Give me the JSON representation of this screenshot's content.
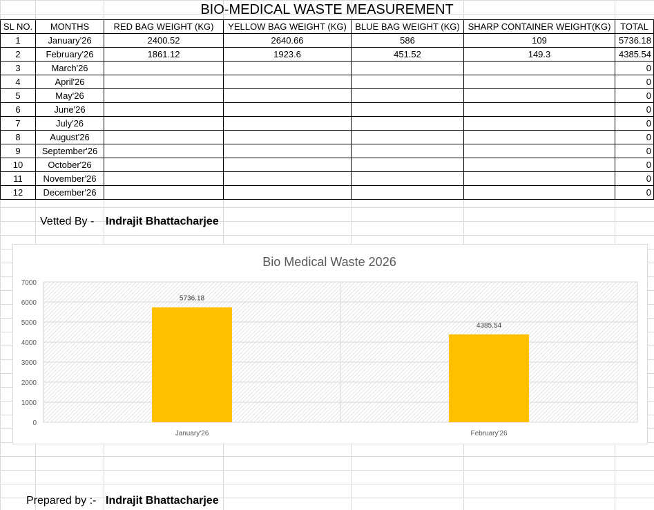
{
  "sheet": {
    "title": "BIO-MEDICAL WASTE MEASUREMENT",
    "headers": [
      "SL NO.",
      "MONTHS",
      "RED BAG WEIGHT (KG)",
      "YELLOW BAG WEIGHT (KG)",
      "BLUE BAG WEIGHT (KG)",
      "SHARP CONTAINER WEIGHT(KG)",
      "TOTAL"
    ],
    "rows": [
      [
        "1",
        "January'26",
        "2400.52",
        "2640.66",
        "586",
        "109",
        "5736.18"
      ],
      [
        "2",
        "February'26",
        "1861.12",
        "1923.6",
        "451.52",
        "149.3",
        "4385.54"
      ],
      [
        "3",
        "March'26",
        "",
        "",
        "",
        "",
        "0"
      ],
      [
        "4",
        "April'26",
        "",
        "",
        "",
        "",
        "0"
      ],
      [
        "5",
        "May'26",
        "",
        "",
        "",
        "",
        "0"
      ],
      [
        "6",
        "June'26",
        "",
        "",
        "",
        "",
        "0"
      ],
      [
        "7",
        "July'26",
        "",
        "",
        "",
        "",
        "0"
      ],
      [
        "8",
        "August'26",
        "",
        "",
        "",
        "",
        "0"
      ],
      [
        "9",
        "September'26",
        "",
        "",
        "",
        "",
        "0"
      ],
      [
        "10",
        "October'26",
        "",
        "",
        "",
        "",
        "0"
      ],
      [
        "11",
        "November'26",
        "",
        "",
        "",
        "",
        "0"
      ],
      [
        "12",
        "December'26",
        "",
        "",
        "",
        "",
        "0"
      ]
    ]
  },
  "vetted": {
    "label": "Vetted By -",
    "name": "Indrajit Bhattacharjee"
  },
  "prepared": {
    "label": "Prepared by :-",
    "name": "Indrajit Bhattacharjee"
  },
  "chart_data": {
    "type": "bar",
    "title": "Bio Medical Waste 2026",
    "categories": [
      "January'26",
      "February'26"
    ],
    "values": [
      5736.18,
      4385.54
    ],
    "data_labels": [
      "5736.18",
      "4385.54"
    ],
    "ylim": [
      0,
      7000
    ],
    "yticks": [
      0,
      1000,
      2000,
      3000,
      4000,
      5000,
      6000,
      7000
    ],
    "bar_color": "#FFC000",
    "grid": true,
    "legend": "none"
  }
}
